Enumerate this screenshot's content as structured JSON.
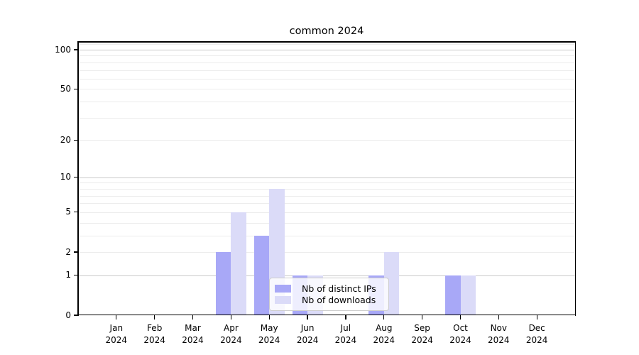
{
  "chart_data": {
    "type": "bar",
    "title": "common 2024",
    "categories": [
      "Jan",
      "Feb",
      "Mar",
      "Apr",
      "May",
      "Jun",
      "Jul",
      "Aug",
      "Sep",
      "Oct",
      "Nov",
      "Dec"
    ],
    "year_label": "2024",
    "series": [
      {
        "name": "Nb of distinct IPs",
        "color": "#a8a8f7",
        "values": [
          0,
          0,
          0,
          2,
          3,
          1,
          0,
          1,
          0,
          1,
          0,
          0
        ]
      },
      {
        "name": "Nb of downloads",
        "color": "#dbdbf8",
        "values": [
          0,
          0,
          0,
          5,
          8,
          1,
          0,
          2,
          0,
          1,
          0,
          0
        ]
      }
    ],
    "yscale": "log10(1+value)",
    "ylim": [
      0,
      115
    ],
    "yticks": [
      0,
      1,
      2,
      5,
      10,
      20,
      50,
      100
    ],
    "grid": {
      "on": true,
      "major_lines": [
        1,
        10,
        100
      ],
      "minor_lines": [
        2,
        3,
        4,
        5,
        6,
        7,
        8,
        9,
        20,
        30,
        40,
        50,
        60,
        70,
        80,
        90,
        110
      ],
      "major_color": "#c9c9c9",
      "minor_color": "#ececec"
    },
    "legend_position": "lower center",
    "bar_color_dark": "#a8a8f7",
    "bar_color_light": "#dbdbf8"
  }
}
